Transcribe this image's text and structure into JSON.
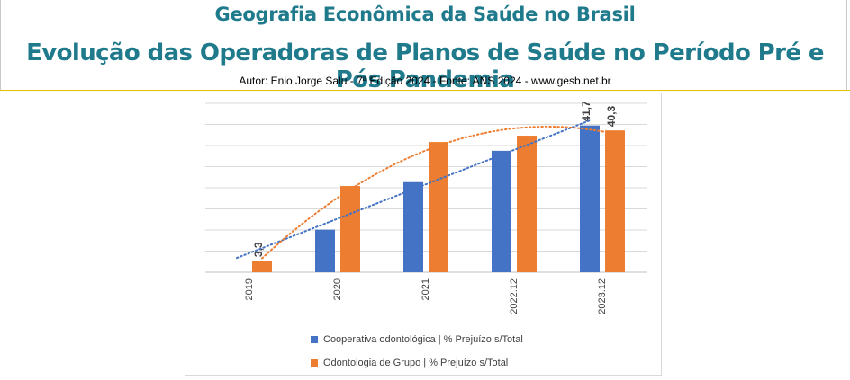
{
  "header": {
    "title": "Geografia Econômica da Saúde no Brasil",
    "subtitle": "Evolução das Operadoras de Planos de Saúde no Período Pré e Pós Pandemia",
    "byline": "Autor: Enio Jorge Salu - 7ª Edição 2024 - Fonte: ANS 2024 - www.gesb.net.br"
  },
  "chart_data": {
    "type": "bar",
    "categories": [
      "2019",
      "2020",
      "2021",
      "2022.12",
      "2023.12"
    ],
    "series": [
      {
        "name": "Cooperativa odontológica | % Prejuízo s/Total",
        "color": "#4472c4",
        "values": [
          null,
          12.1,
          25.6,
          34.5,
          41.7
        ],
        "data_labels": [
          "",
          "",
          "",
          "",
          "41,7"
        ],
        "trendline": "linear"
      },
      {
        "name": "Odontologia de Grupo | % Prejuízo s/Total",
        "color": "#ed7d31",
        "values": [
          3.3,
          24.5,
          37.0,
          38.8,
          40.3
        ],
        "data_labels": [
          "3,3",
          "",
          "",
          "",
          "40,3"
        ],
        "trendline": "polynomial"
      }
    ],
    "ylim": [
      0,
      48
    ],
    "y_tick_labels": "none",
    "grid": true,
    "legend_position": "bottom",
    "x_tick_rotation": "vertical"
  }
}
